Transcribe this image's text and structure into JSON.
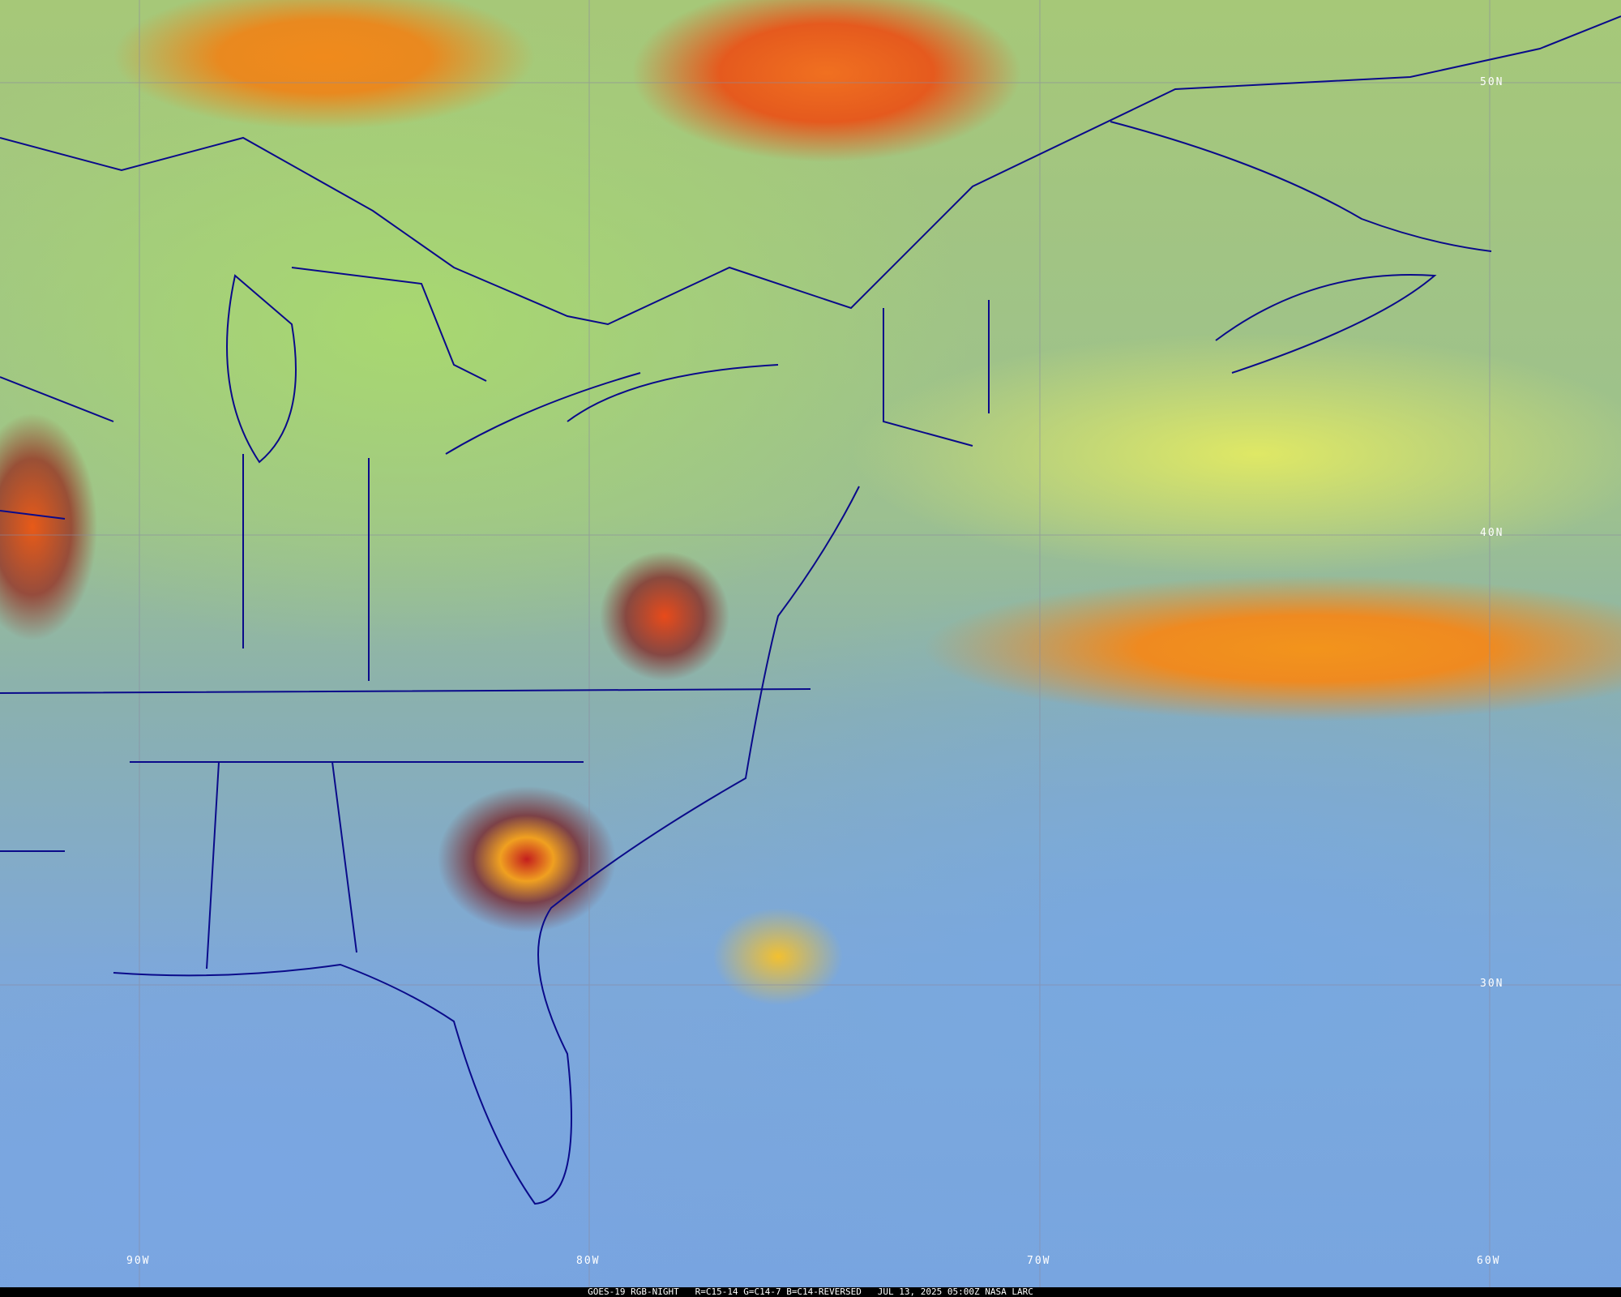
{
  "caption": "GOES-19 RGB-NIGHT   R=C15-14 G=C14-7 B=C14-REVERSED   JUL 13, 2025 05:00Z NASA LARC",
  "latitude_labels": [
    "50N",
    "40N",
    "30N"
  ],
  "longitude_labels": [
    "90W",
    "80W",
    "70W",
    "60W"
  ],
  "colors": {
    "borders": "#0a0a8a",
    "grid": "#8a8aa0",
    "caption_bg": "#000000",
    "caption_text": "#ffffff"
  }
}
